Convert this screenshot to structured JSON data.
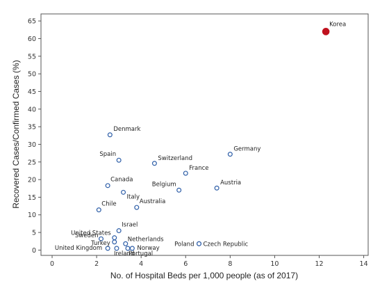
{
  "chart_data": {
    "type": "scatter",
    "xlabel": "No. of Hospital Beds per 1,000 people (as of 2017)",
    "ylabel": "Recovered Cases/Confirmed Cases (%)",
    "xlim": [
      -0.5,
      14.2
    ],
    "ylim": [
      -1.5,
      67
    ],
    "xticks": [
      0,
      2,
      4,
      6,
      8,
      10,
      12,
      14
    ],
    "yticks": [
      0,
      5,
      10,
      15,
      20,
      25,
      30,
      35,
      40,
      45,
      50,
      55,
      60,
      65
    ],
    "grid": false,
    "colors": {
      "default_marker": "#2f5fa8",
      "highlight_marker": "#c0121e"
    },
    "points": [
      {
        "label": "Korea",
        "x": 12.3,
        "y": 62,
        "highlight": true
      },
      {
        "label": "Denmark",
        "x": 2.6,
        "y": 32.7
      },
      {
        "label": "Germany",
        "x": 8.0,
        "y": 27.2
      },
      {
        "label": "Spain",
        "x": 3.0,
        "y": 25.5
      },
      {
        "label": "Switzerland",
        "x": 4.6,
        "y": 24.6
      },
      {
        "label": "France",
        "x": 6.0,
        "y": 21.8
      },
      {
        "label": "Canada",
        "x": 2.5,
        "y": 18.3
      },
      {
        "label": "Austria",
        "x": 7.4,
        "y": 17.6
      },
      {
        "label": "Belgium",
        "x": 5.7,
        "y": 17.0
      },
      {
        "label": "Italy",
        "x": 3.2,
        "y": 16.4
      },
      {
        "label": "Australia",
        "x": 3.8,
        "y": 12.1
      },
      {
        "label": "Chile",
        "x": 2.1,
        "y": 11.4
      },
      {
        "label": "Israel",
        "x": 3.0,
        "y": 5.5
      },
      {
        "label": "United States",
        "x": 2.8,
        "y": 3.5
      },
      {
        "label": "Sweden",
        "x": 2.2,
        "y": 3.2
      },
      {
        "label": "Turkey",
        "x": 2.8,
        "y": 2.3
      },
      {
        "label": "Netherlands",
        "x": 3.3,
        "y": 1.8
      },
      {
        "label": "Poland",
        "x": 6.6,
        "y": 1.8
      },
      {
        "label": "Czech Republic",
        "x": 6.6,
        "y": 1.8
      },
      {
        "label": "United Kingdom",
        "x": 2.5,
        "y": 0.5
      },
      {
        "label": "Ireland",
        "x": 2.9,
        "y": 0.5
      },
      {
        "label": "Portugal",
        "x": 3.4,
        "y": 0.5
      },
      {
        "label": "Norway",
        "x": 3.6,
        "y": 0.5
      }
    ]
  }
}
